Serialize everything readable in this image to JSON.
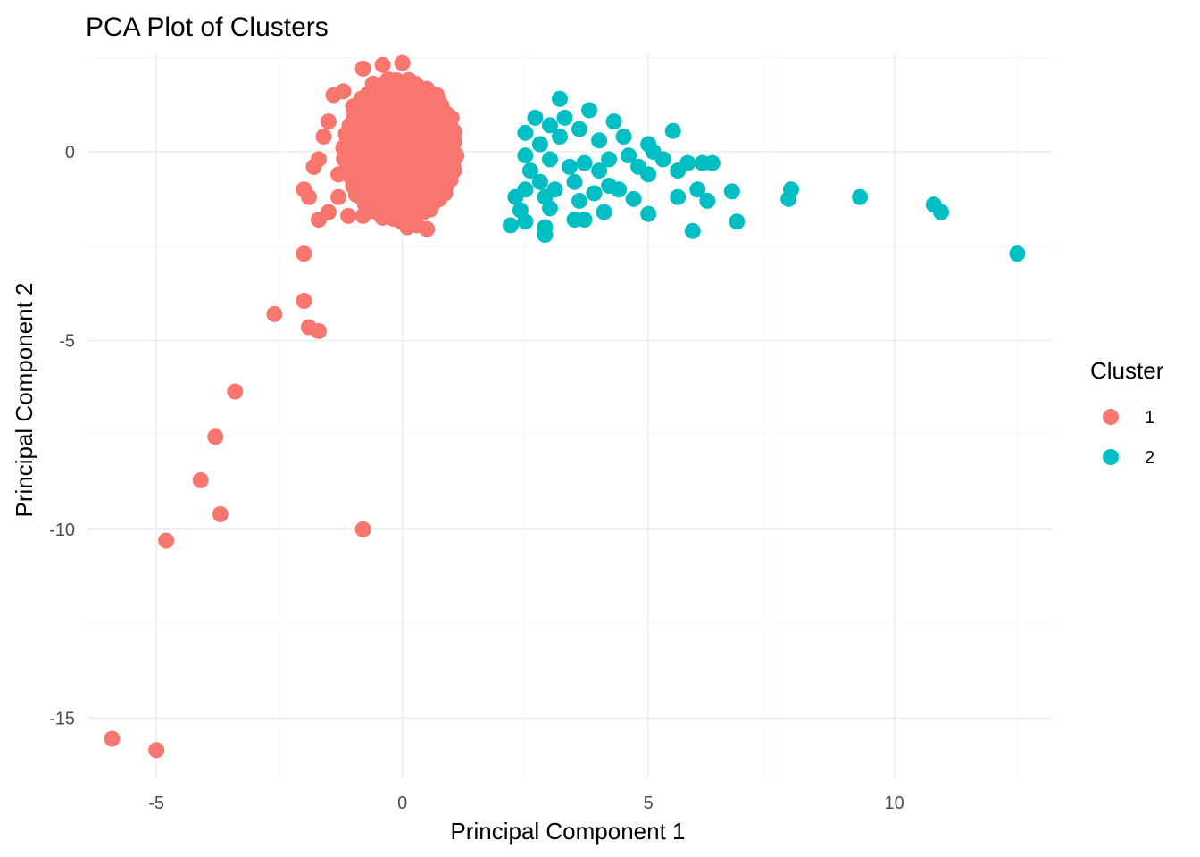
{
  "chart_data": {
    "type": "scatter",
    "title": "PCA Plot of Clusters",
    "xlabel": "Principal Component 1",
    "ylabel": "Principal Component 2",
    "xlim": [
      -6.4,
      13.2
    ],
    "ylim": [
      -16.6,
      2.6
    ],
    "x_ticks": [
      -5,
      0,
      5,
      10
    ],
    "y_ticks": [
      0,
      -5,
      -10,
      -15
    ],
    "grid": true,
    "legend": {
      "title": "Cluster",
      "position": "right"
    },
    "series": [
      {
        "name": "1",
        "color": "#F8766D",
        "points": [
          [
            -0.8,
            2.2
          ],
          [
            -0.4,
            2.3
          ],
          [
            0.0,
            2.35
          ],
          [
            -0.3,
            1.9
          ],
          [
            -0.6,
            1.8
          ],
          [
            0.3,
            1.6
          ],
          [
            -1.2,
            1.6
          ],
          [
            -1.4,
            1.5
          ],
          [
            0.7,
            1.5
          ],
          [
            -1.0,
            1.2
          ],
          [
            0.9,
            1.0
          ],
          [
            1.0,
            0.9
          ],
          [
            -1.5,
            0.8
          ],
          [
            -1.6,
            0.4
          ],
          [
            1.05,
            0.5
          ],
          [
            1.1,
            -0.1
          ],
          [
            1.05,
            -0.5
          ],
          [
            0.9,
            -0.8
          ],
          [
            -1.7,
            -0.2
          ],
          [
            -1.8,
            -0.4
          ],
          [
            -2.0,
            -1.0
          ],
          [
            -1.9,
            -1.2
          ],
          [
            -1.3,
            -1.2
          ],
          [
            -1.1,
            -1.7
          ],
          [
            -0.8,
            -1.7
          ],
          [
            -0.4,
            -1.75
          ],
          [
            -1.5,
            -1.6
          ],
          [
            -1.7,
            -1.8
          ],
          [
            0.1,
            -2.0
          ],
          [
            0.3,
            -1.95
          ],
          [
            0.5,
            -2.05
          ],
          [
            -0.2,
            -1.5
          ],
          [
            0.4,
            -1.2
          ],
          [
            -0.5,
            -1.3
          ],
          [
            -0.9,
            -1.0
          ],
          [
            0.2,
            -0.8
          ],
          [
            -0.3,
            0.2
          ],
          [
            -0.7,
            0.6
          ],
          [
            0.5,
            0.3
          ],
          [
            0.6,
            -0.3
          ],
          [
            -1.2,
            0.1
          ],
          [
            0.0,
            1.0
          ],
          [
            -0.4,
            -0.4
          ],
          [
            0.8,
            0.6
          ],
          [
            -1.3,
            -0.6
          ],
          [
            0.2,
            0.9
          ],
          [
            -0.6,
            -0.9
          ],
          [
            0.6,
            1.2
          ],
          [
            -2.0,
            -2.7
          ],
          [
            -2.0,
            -3.95
          ],
          [
            -1.9,
            -4.65
          ],
          [
            -1.7,
            -4.75
          ],
          [
            -2.6,
            -4.3
          ],
          [
            -3.4,
            -6.35
          ],
          [
            -3.8,
            -7.55
          ],
          [
            -4.1,
            -8.7
          ],
          [
            -3.7,
            -9.6
          ],
          [
            -0.8,
            -10.0
          ],
          [
            -4.8,
            -10.3
          ],
          [
            -5.9,
            -15.55
          ],
          [
            -5.0,
            -15.85
          ]
        ]
      },
      {
        "name": "2",
        "color": "#00BFC4",
        "points": [
          [
            3.2,
            1.4
          ],
          [
            3.8,
            1.1
          ],
          [
            2.7,
            0.9
          ],
          [
            3.3,
            0.9
          ],
          [
            4.3,
            0.8
          ],
          [
            3.0,
            0.7
          ],
          [
            3.6,
            0.6
          ],
          [
            2.5,
            0.5
          ],
          [
            4.5,
            0.4
          ],
          [
            5.5,
            0.55
          ],
          [
            3.2,
            0.4
          ],
          [
            2.8,
            0.2
          ],
          [
            4.0,
            0.3
          ],
          [
            5.0,
            0.2
          ],
          [
            5.1,
            0.0
          ],
          [
            4.6,
            -0.1
          ],
          [
            2.5,
            -0.1
          ],
          [
            3.0,
            -0.2
          ],
          [
            3.7,
            -0.3
          ],
          [
            4.2,
            -0.2
          ],
          [
            5.3,
            -0.2
          ],
          [
            5.8,
            -0.3
          ],
          [
            6.1,
            -0.3
          ],
          [
            6.3,
            -0.3
          ],
          [
            2.6,
            -0.5
          ],
          [
            3.4,
            -0.4
          ],
          [
            4.0,
            -0.5
          ],
          [
            4.8,
            -0.4
          ],
          [
            5.0,
            -0.6
          ],
          [
            5.6,
            -0.5
          ],
          [
            2.8,
            -0.8
          ],
          [
            3.5,
            -0.8
          ],
          [
            4.2,
            -0.9
          ],
          [
            2.5,
            -1.0
          ],
          [
            3.1,
            -1.0
          ],
          [
            3.9,
            -1.1
          ],
          [
            4.4,
            -1.0
          ],
          [
            6.0,
            -1.0
          ],
          [
            6.7,
            -1.05
          ],
          [
            2.3,
            -1.2
          ],
          [
            2.9,
            -1.2
          ],
          [
            3.6,
            -1.3
          ],
          [
            4.7,
            -1.25
          ],
          [
            5.6,
            -1.2
          ],
          [
            6.2,
            -1.3
          ],
          [
            7.9,
            -1.0
          ],
          [
            7.85,
            -1.25
          ],
          [
            9.3,
            -1.2
          ],
          [
            2.4,
            -1.55
          ],
          [
            3.0,
            -1.5
          ],
          [
            4.1,
            -1.6
          ],
          [
            5.0,
            -1.65
          ],
          [
            2.2,
            -1.95
          ],
          [
            2.5,
            -1.85
          ],
          [
            3.5,
            -1.8
          ],
          [
            3.7,
            -1.8
          ],
          [
            6.8,
            -1.85
          ],
          [
            2.9,
            -2.0
          ],
          [
            2.9,
            -2.2
          ],
          [
            5.9,
            -2.1
          ],
          [
            10.8,
            -1.4
          ],
          [
            10.95,
            -1.6
          ],
          [
            12.5,
            -2.7
          ]
        ]
      }
    ]
  }
}
